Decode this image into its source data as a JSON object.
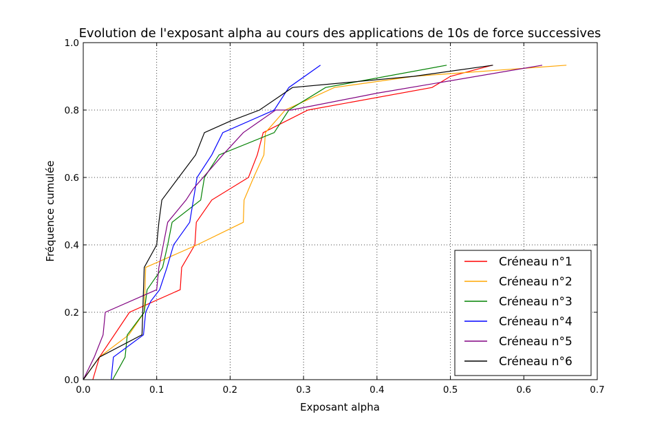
{
  "chart_data": {
    "type": "line",
    "title": "Evolution de l'exposant alpha au cours des applications de 10s de force successives",
    "xlabel": "Exposant alpha",
    "ylabel": "Fréquence cumulée",
    "xlim": [
      0.0,
      0.7
    ],
    "ylim": [
      0.0,
      1.0
    ],
    "xticks": [
      "0.0",
      "0.1",
      "0.2",
      "0.3",
      "0.4",
      "0.5",
      "0.6",
      "0.7"
    ],
    "yticks": [
      "0.0",
      "0.2",
      "0.4",
      "0.6",
      "0.8",
      "1.0"
    ],
    "grid": true,
    "legend_position": "lower-right",
    "series": [
      {
        "name": "Créneau n°1",
        "color": "#ff0000",
        "x": [
          0.013,
          0.022,
          0.063,
          0.132,
          0.134,
          0.152,
          0.154,
          0.175,
          0.225,
          0.237,
          0.245,
          0.306,
          0.475,
          0.5,
          0.557
        ],
        "y": [
          0.0,
          0.067,
          0.2,
          0.267,
          0.333,
          0.4,
          0.467,
          0.533,
          0.6,
          0.667,
          0.733,
          0.8,
          0.867,
          0.9,
          0.933
        ]
      },
      {
        "name": "Créneau n°2",
        "color": "#ffa500",
        "x": [
          0.0,
          0.022,
          0.062,
          0.083,
          0.085,
          0.155,
          0.218,
          0.219,
          0.232,
          0.246,
          0.248,
          0.275,
          0.342,
          0.45,
          0.658
        ],
        "y": [
          0.0,
          0.067,
          0.133,
          0.2,
          0.333,
          0.4,
          0.467,
          0.533,
          0.6,
          0.667,
          0.733,
          0.8,
          0.867,
          0.9,
          0.933
        ]
      },
      {
        "name": "Créneau n°3",
        "color": "#008000",
        "x": [
          0.04,
          0.057,
          0.06,
          0.083,
          0.087,
          0.108,
          0.115,
          0.121,
          0.16,
          0.165,
          0.185,
          0.26,
          0.28,
          0.33,
          0.495
        ],
        "y": [
          0.0,
          0.067,
          0.133,
          0.2,
          0.267,
          0.333,
          0.4,
          0.467,
          0.533,
          0.6,
          0.667,
          0.733,
          0.8,
          0.867,
          0.933
        ]
      },
      {
        "name": "Créneau n°4",
        "color": "#0000ff",
        "x": [
          0.038,
          0.041,
          0.082,
          0.085,
          0.092,
          0.104,
          0.114,
          0.123,
          0.145,
          0.155,
          0.175,
          0.19,
          0.26,
          0.28,
          0.323
        ],
        "y": [
          0.0,
          0.067,
          0.133,
          0.2,
          0.233,
          0.267,
          0.333,
          0.4,
          0.467,
          0.6,
          0.667,
          0.733,
          0.8,
          0.867,
          0.933
        ]
      },
      {
        "name": "Créneau n°5",
        "color": "#800080",
        "x": [
          0.0,
          0.015,
          0.027,
          0.03,
          0.1,
          0.103,
          0.115,
          0.14,
          0.15,
          0.19,
          0.218,
          0.262,
          0.283,
          0.4,
          0.625
        ],
        "y": [
          0.0,
          0.067,
          0.133,
          0.2,
          0.267,
          0.333,
          0.467,
          0.533,
          0.567,
          0.667,
          0.733,
          0.8,
          0.8,
          0.85,
          0.933
        ]
      },
      {
        "name": "Créneau n°6",
        "color": "#000000",
        "x": [
          0.0,
          0.022,
          0.08,
          0.083,
          0.1,
          0.103,
          0.107,
          0.13,
          0.153,
          0.165,
          0.2,
          0.24,
          0.285,
          0.45,
          0.558
        ],
        "y": [
          0.0,
          0.067,
          0.133,
          0.333,
          0.4,
          0.467,
          0.533,
          0.6,
          0.667,
          0.733,
          0.767,
          0.8,
          0.867,
          0.9,
          0.933
        ]
      }
    ]
  }
}
